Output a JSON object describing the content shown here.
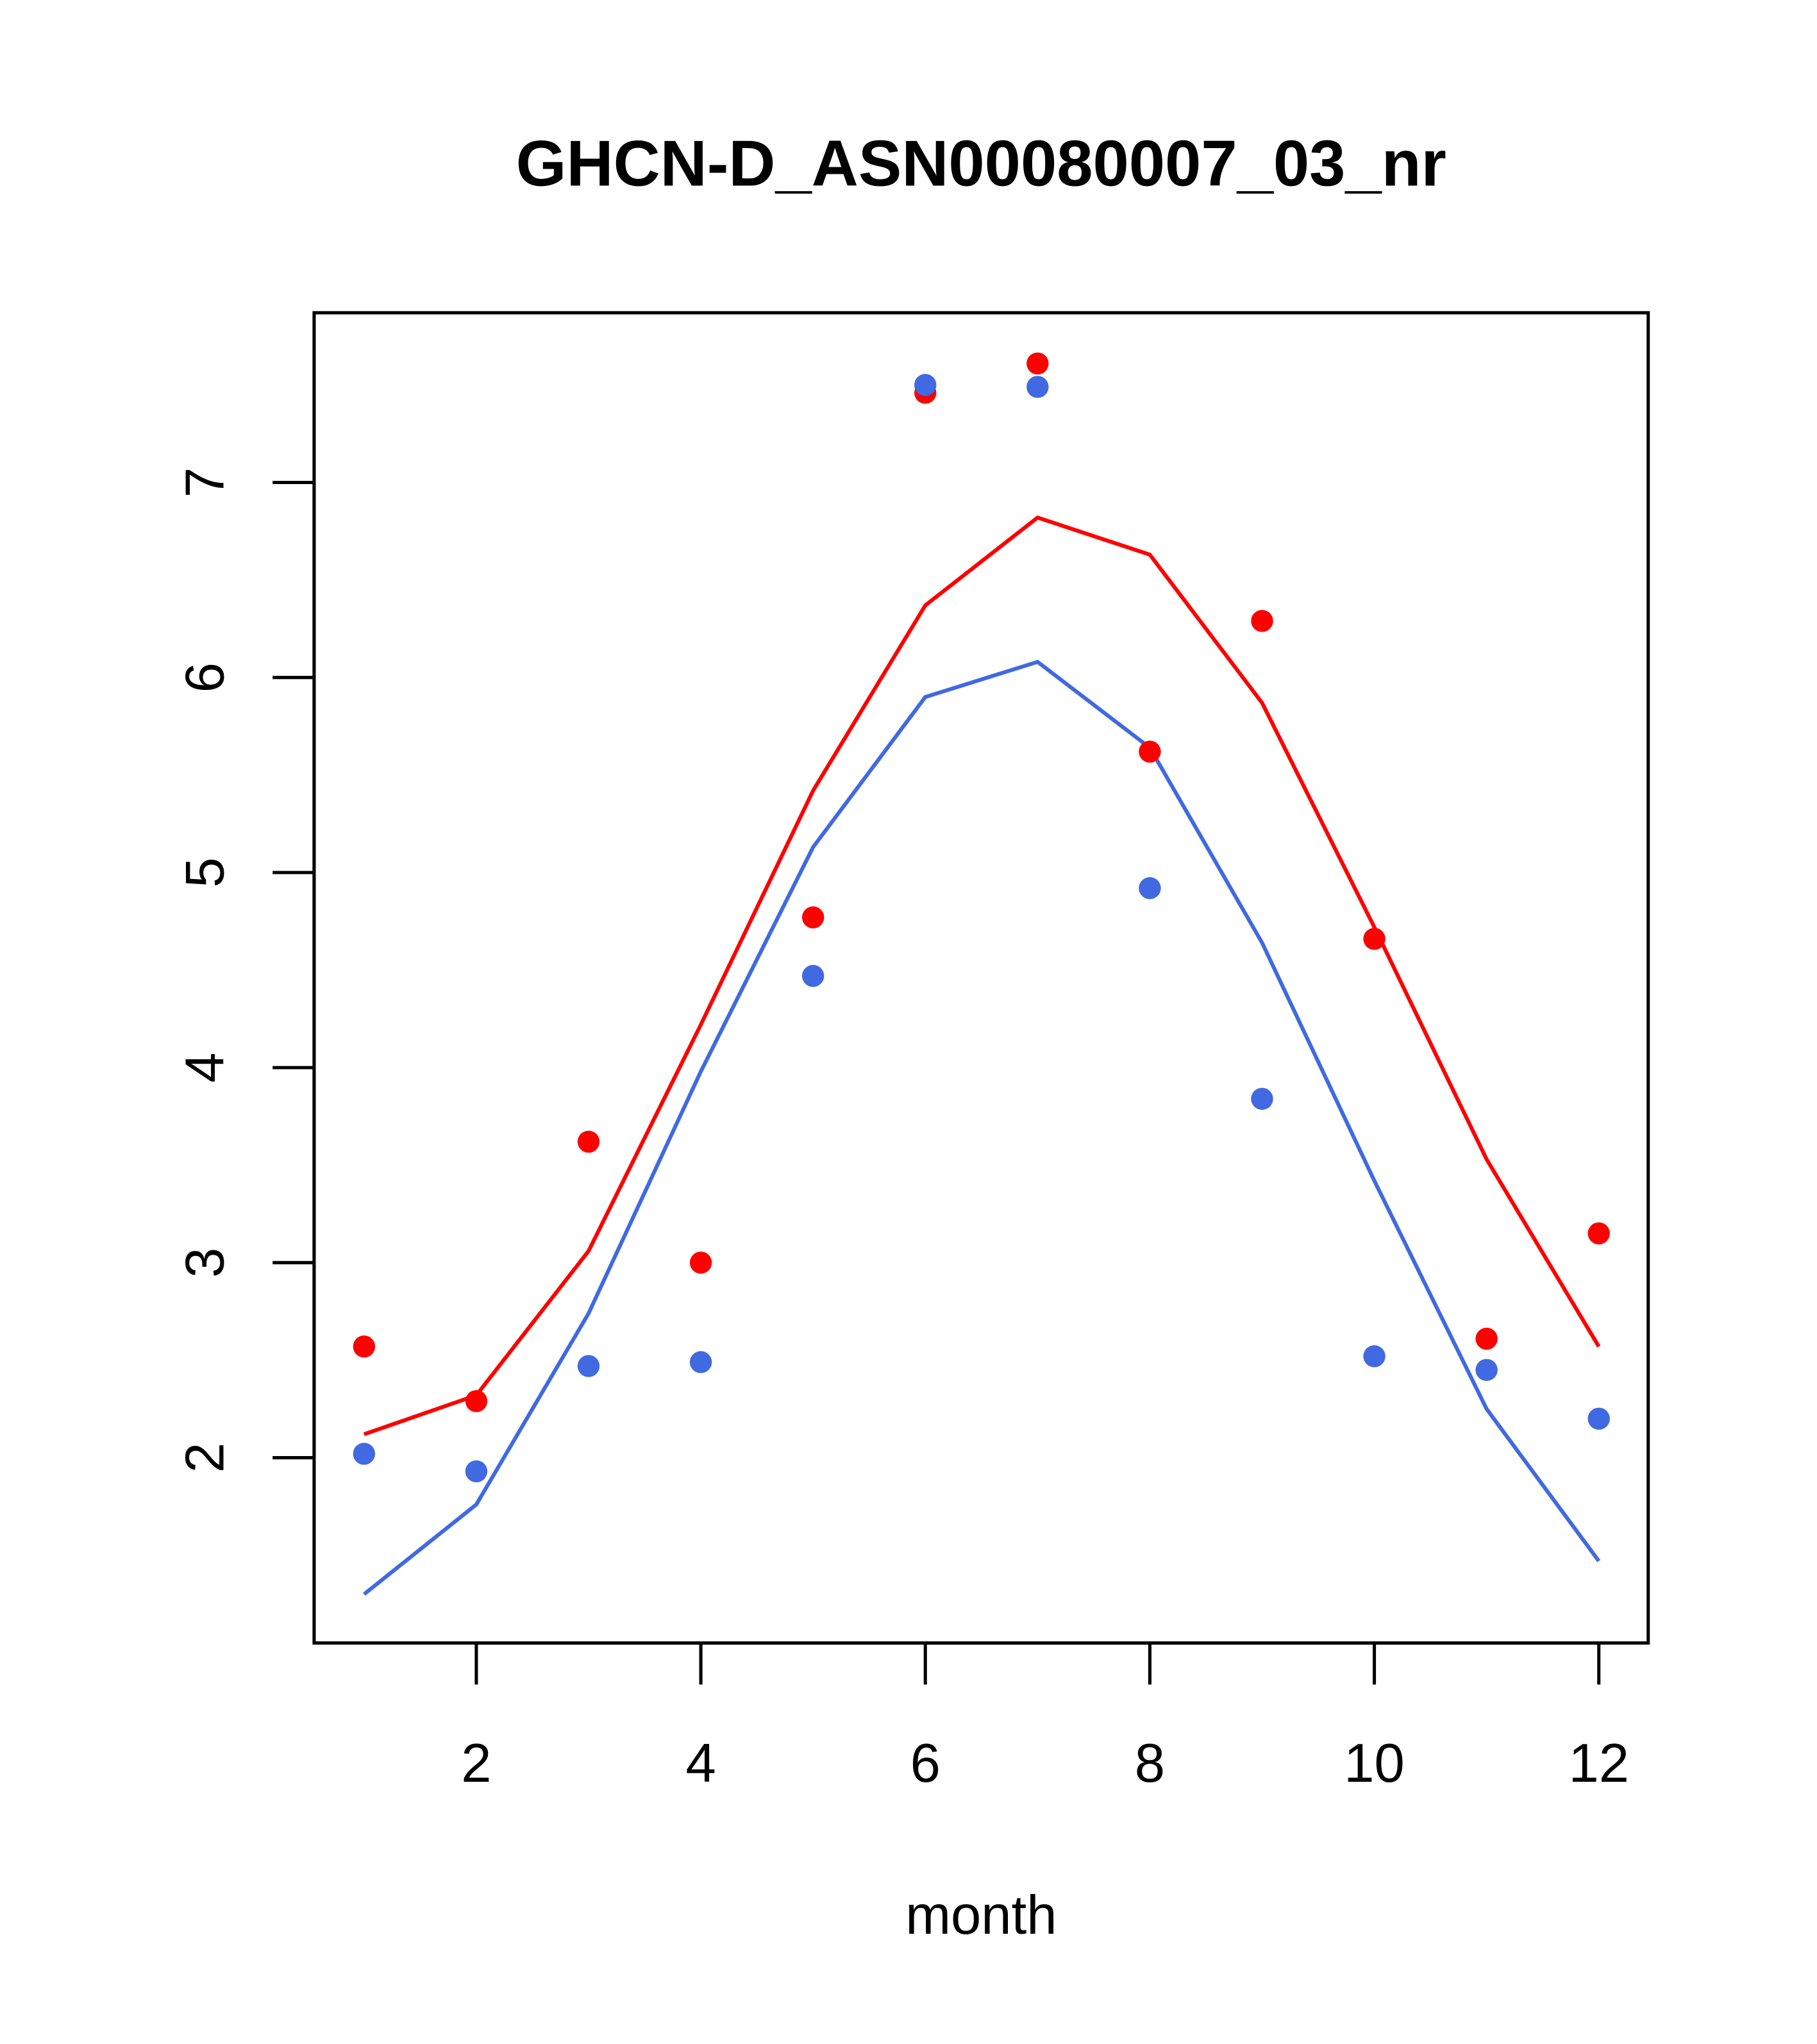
{
  "chart_data": {
    "type": "scatter",
    "title": "GHCN-D_ASN00080007_03_nr",
    "xlabel": "month",
    "ylabel": "",
    "xlim": [
      0.555,
      12.44
    ],
    "ylim": [
      1.05,
      7.87
    ],
    "x_ticks": [
      2,
      4,
      6,
      8,
      10,
      12
    ],
    "y_ticks": [
      2,
      3,
      4,
      5,
      6,
      7
    ],
    "x_tick_labels": [
      "2",
      "4",
      "6",
      "8",
      "10",
      "12"
    ],
    "y_tick_labels": [
      "2",
      "3",
      "4",
      "5",
      "6",
      "7"
    ],
    "grid": false,
    "x": [
      1,
      2,
      3,
      4,
      5,
      6,
      7,
      8,
      9,
      10,
      11,
      12
    ],
    "series": [
      {
        "name": "red points",
        "kind": "points",
        "color": "#ff0000",
        "values": [
          2.57,
          2.29,
          3.62,
          3.0,
          4.77,
          7.46,
          7.61,
          5.62,
          6.29,
          4.66,
          2.61,
          3.15
        ]
      },
      {
        "name": "blue points",
        "kind": "points",
        "color": "#4169e1",
        "values": [
          2.02,
          1.93,
          2.47,
          2.49,
          4.47,
          7.5,
          7.49,
          4.92,
          3.84,
          2.52,
          2.45,
          2.2
        ]
      },
      {
        "name": "red line",
        "kind": "line",
        "color": "#ff0000",
        "values": [
          2.12,
          2.32,
          3.06,
          4.22,
          5.42,
          6.37,
          6.82,
          6.63,
          5.87,
          4.72,
          3.53,
          2.57
        ]
      },
      {
        "name": "blue line",
        "kind": "line",
        "color": "#4169e1",
        "values": [
          1.3,
          1.76,
          2.74,
          3.98,
          5.13,
          5.9,
          6.08,
          5.64,
          4.64,
          3.42,
          2.25,
          1.47
        ]
      }
    ]
  }
}
